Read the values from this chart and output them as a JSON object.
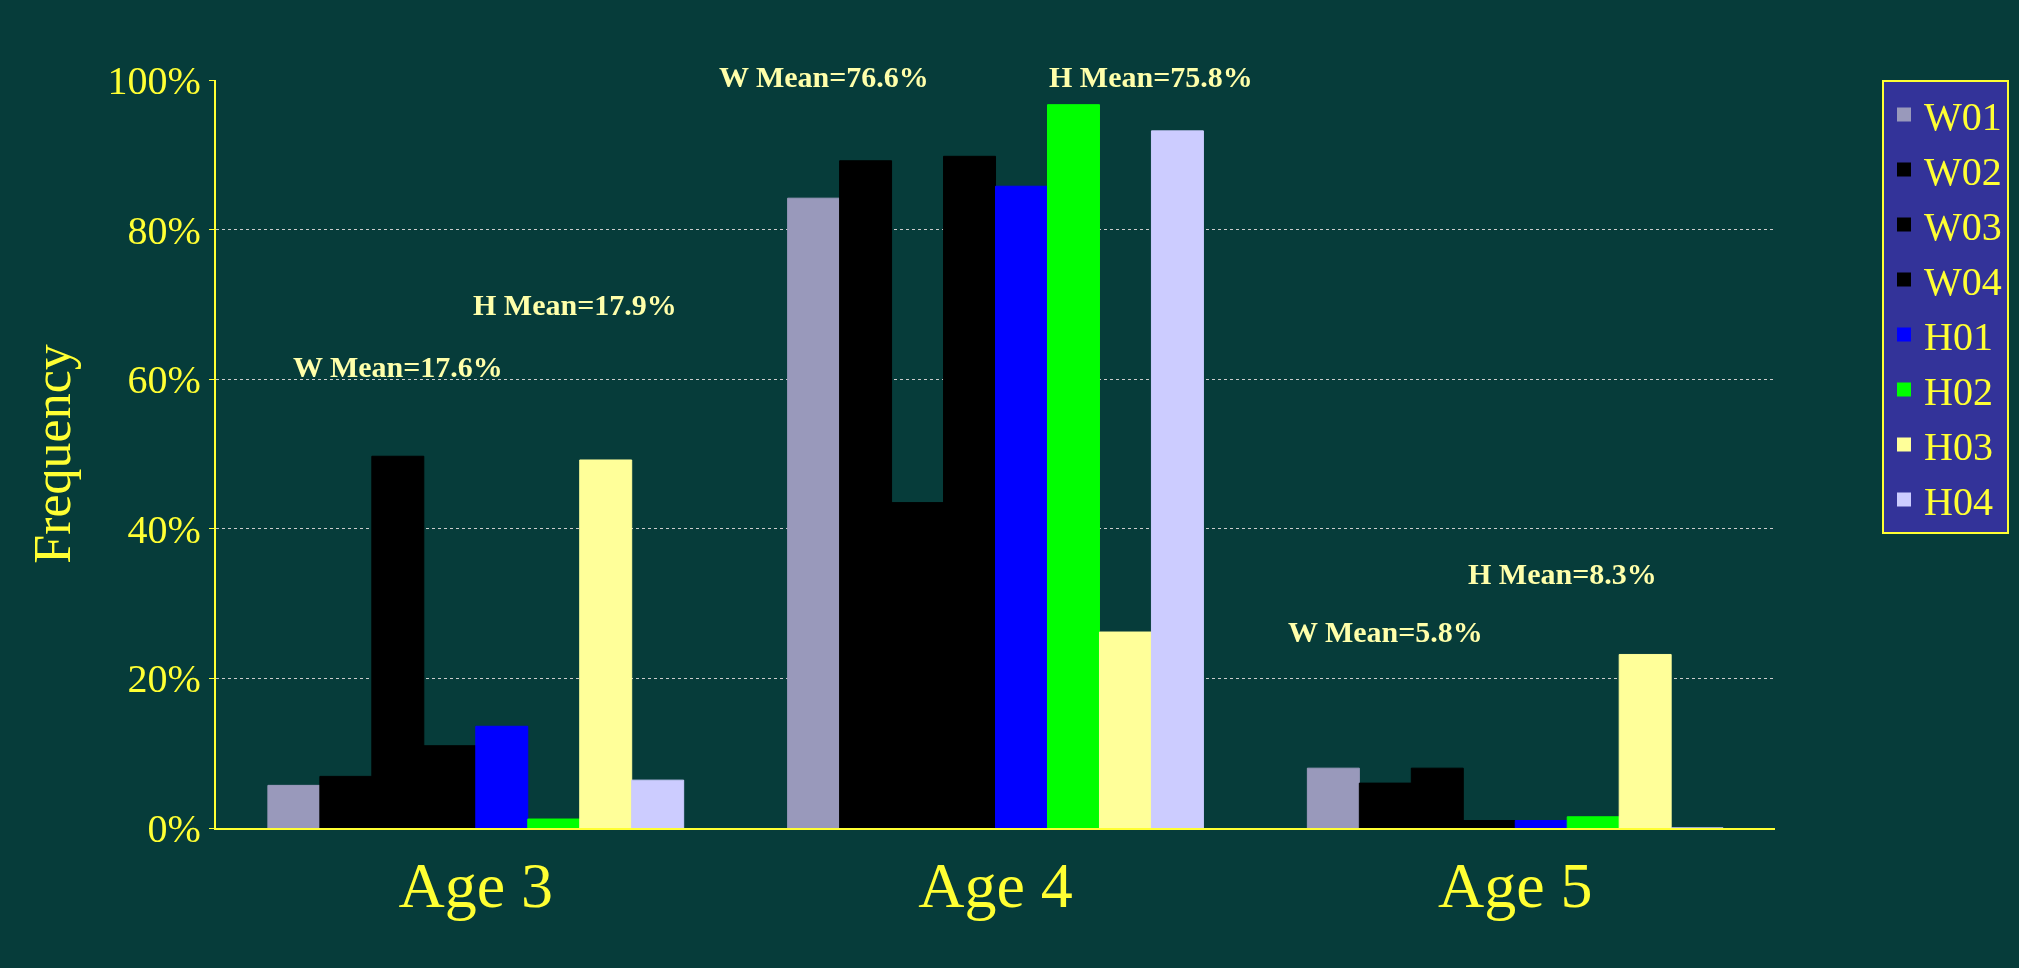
{
  "chart_data": {
    "type": "bar",
    "ylabel": "Frequency",
    "categories": [
      "Age 3",
      "Age 4",
      "Age 5"
    ],
    "series": [
      {
        "name": "W01",
        "color": "#9999bb",
        "values": [
          5.7,
          84.2,
          8
        ]
      },
      {
        "name": "W02",
        "color": "#000000",
        "values": [
          6.9,
          89.2,
          6
        ]
      },
      {
        "name": "W03",
        "color": "#000000",
        "values": [
          49.7,
          43.5,
          8
        ]
      },
      {
        "name": "W04",
        "color": "#000000",
        "values": [
          11,
          89.8,
          1
        ]
      },
      {
        "name": "H01",
        "color": "#0000ff",
        "values": [
          13.6,
          85.8,
          1
        ]
      },
      {
        "name": "H02",
        "color": "#00ff00",
        "values": [
          1.2,
          96.7,
          1.5
        ]
      },
      {
        "name": "H03",
        "color": "#ffff99",
        "values": [
          49.2,
          26.2,
          23.2
        ]
      },
      {
        "name": "H04",
        "color": "#ccccff",
        "values": [
          6.4,
          93.2,
          0
        ]
      }
    ],
    "ylim": [
      0,
      100
    ],
    "yticks": [
      {
        "value": 0,
        "label": "0%"
      },
      {
        "value": 20,
        "label": "20%"
      },
      {
        "value": 40,
        "label": "40%"
      },
      {
        "value": 60,
        "label": "60%"
      },
      {
        "value": 80,
        "label": "80%"
      },
      {
        "value": 100,
        "label": "100%"
      }
    ],
    "annotations": [
      "W Mean=17.6%",
      "H Mean=17.9%",
      "W Mean=76.6%",
      "H Mean=75.8%",
      "W Mean=5.8%",
      "H Mean=8.3%"
    ],
    "grid": "y",
    "legend": "top right"
  }
}
